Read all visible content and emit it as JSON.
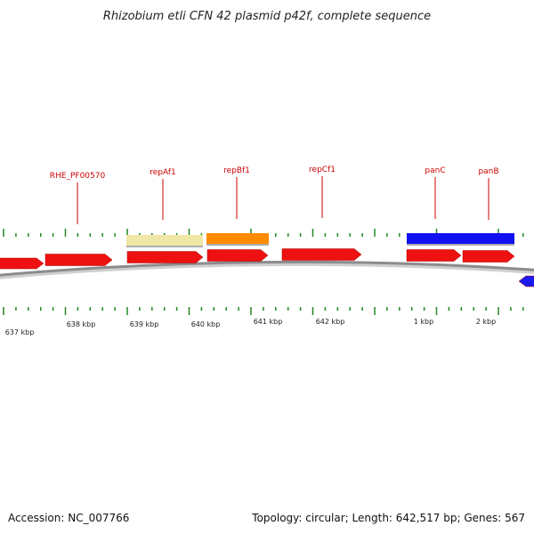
{
  "title": "Rhizobium etli CFN 42 plasmid p42f, complete sequence",
  "footer": {
    "accession": "Accession: NC_007766",
    "summary": "Topology: circular; Length: 642,517 bp; Genes: 567"
  },
  "colors": {
    "gene_forward": "#ee1111",
    "gene_reverse": "#1a1aee",
    "cds_rep_a": "#f0e6a6",
    "cds_rep_b": "#ff8c00",
    "cds_pan": "#1010f0",
    "label_text": "#cc0000",
    "tick_mark": "#228822",
    "backbone": "#8c8c8c"
  },
  "gene_labels": [
    {
      "id": "rhe",
      "text": "RHE_PF00570"
    },
    {
      "id": "repA",
      "text": "repAf1"
    },
    {
      "id": "repB",
      "text": "repBf1"
    },
    {
      "id": "repC",
      "text": "repCf1"
    },
    {
      "id": "panC",
      "text": "panC"
    },
    {
      "id": "panB",
      "text": "panB"
    }
  ],
  "scale_labels": [
    "637 kbp",
    "638 kbp",
    "639 kbp",
    "640 kbp",
    "641 kbp",
    "642 kbp",
    "1 kbp",
    "2 kbp"
  ]
}
